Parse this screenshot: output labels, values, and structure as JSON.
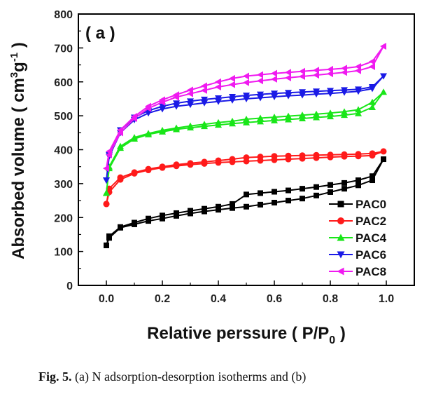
{
  "panel_label": "( a )",
  "caption": {
    "label": "Fig. 5.",
    "text": "(a) N adsorption-desorption isotherms and (b)"
  },
  "chart_data": {
    "type": "line",
    "xlabel": "Relative perssure ( P/P",
    "xlabel_sub": "0",
    "xlabel_end": " )",
    "ylabel": "Absorbed volume ( cm",
    "ylabel_sup1": "3",
    "ylabel_mid": "g",
    "ylabel_sup2": "-1",
    "ylabel_end": " )",
    "xlim": [
      -0.1,
      1.1
    ],
    "ylim": [
      0,
      800
    ],
    "xticks": [
      0.0,
      0.2,
      0.4,
      0.6,
      0.8,
      1.0
    ],
    "xtick_labels": [
      "0.0",
      "0.2",
      "0.4",
      "0.6",
      "0.8",
      "1.0"
    ],
    "yticks": [
      0,
      100,
      200,
      300,
      400,
      500,
      600,
      700,
      800
    ],
    "ytick_labels": [
      "0",
      "100",
      "200",
      "300",
      "400",
      "500",
      "600",
      "700",
      "800"
    ],
    "legend_position": "bottom-right",
    "series": [
      {
        "name": "PAC0",
        "color": "#000000",
        "marker": "square",
        "x": [
          0.0,
          0.01,
          0.05,
          0.1,
          0.15,
          0.2,
          0.25,
          0.3,
          0.35,
          0.4,
          0.45,
          0.5,
          0.55,
          0.6,
          0.65,
          0.7,
          0.75,
          0.8,
          0.85,
          0.9,
          0.95,
          0.99,
          0.95,
          0.9,
          0.85,
          0.8,
          0.75,
          0.7,
          0.65,
          0.6,
          0.55,
          0.5,
          0.45,
          0.4,
          0.35,
          0.3,
          0.25,
          0.2,
          0.15,
          0.1,
          0.05,
          0.01,
          0.0
        ],
        "y": [
          118,
          140,
          170,
          180,
          190,
          197,
          205,
          212,
          218,
          223,
          228,
          232,
          238,
          244,
          250,
          256,
          265,
          275,
          285,
          295,
          310,
          372,
          322,
          310,
          302,
          296,
          290,
          285,
          280,
          276,
          272,
          268,
          240,
          232,
          226,
          220,
          213,
          206,
          197,
          185,
          172,
          145,
          118
        ]
      },
      {
        "name": "PAC2",
        "color": "#ff1a1a",
        "marker": "circle",
        "x": [
          0.0,
          0.01,
          0.05,
          0.1,
          0.15,
          0.2,
          0.25,
          0.3,
          0.35,
          0.4,
          0.45,
          0.5,
          0.55,
          0.6,
          0.65,
          0.7,
          0.75,
          0.8,
          0.85,
          0.9,
          0.95,
          0.99,
          0.95,
          0.9,
          0.85,
          0.8,
          0.75,
          0.7,
          0.65,
          0.6,
          0.55,
          0.5,
          0.45,
          0.4,
          0.35,
          0.3,
          0.25,
          0.2,
          0.15,
          0.1,
          0.05,
          0.01,
          0.0
        ],
        "y": [
          240,
          275,
          312,
          330,
          340,
          347,
          352,
          356,
          359,
          362,
          364,
          366,
          368,
          370,
          372,
          374,
          376,
          378,
          380,
          381,
          383,
          395,
          389,
          387,
          386,
          385,
          384,
          383,
          382,
          381,
          379,
          377,
          372,
          368,
          364,
          360,
          356,
          350,
          343,
          333,
          318,
          285,
          240
        ]
      },
      {
        "name": "PAC4",
        "color": "#19e619",
        "marker": "triangle-up",
        "x": [
          0.0,
          0.01,
          0.05,
          0.1,
          0.15,
          0.2,
          0.25,
          0.3,
          0.35,
          0.4,
          0.45,
          0.5,
          0.55,
          0.6,
          0.65,
          0.7,
          0.75,
          0.8,
          0.85,
          0.9,
          0.95,
          0.99,
          0.95,
          0.9,
          0.85,
          0.8,
          0.75,
          0.7,
          0.65,
          0.6,
          0.55,
          0.5,
          0.45,
          0.4,
          0.35,
          0.3,
          0.25,
          0.2,
          0.15,
          0.1,
          0.05,
          0.01,
          0.0
        ],
        "y": [
          272,
          345,
          405,
          432,
          445,
          453,
          460,
          465,
          469,
          473,
          477,
          480,
          483,
          486,
          489,
          492,
          495,
          498,
          502,
          507,
          525,
          570,
          540,
          518,
          512,
          508,
          505,
          502,
          499,
          496,
          493,
          490,
          484,
          480,
          475,
          470,
          464,
          457,
          448,
          436,
          410,
          350,
          272
        ]
      },
      {
        "name": "PAC6",
        "color": "#1a1ae6",
        "marker": "triangle-down",
        "x": [
          0.0,
          0.01,
          0.05,
          0.1,
          0.15,
          0.2,
          0.25,
          0.3,
          0.35,
          0.4,
          0.45,
          0.5,
          0.55,
          0.6,
          0.65,
          0.7,
          0.75,
          0.8,
          0.85,
          0.9,
          0.95,
          0.99,
          0.95,
          0.9,
          0.85,
          0.8,
          0.75,
          0.7,
          0.65,
          0.6,
          0.55,
          0.5,
          0.45,
          0.4,
          0.35,
          0.3,
          0.25,
          0.2,
          0.15,
          0.1,
          0.05,
          0.01,
          0.0
        ],
        "y": [
          310,
          380,
          450,
          488,
          508,
          520,
          528,
          533,
          538,
          542,
          546,
          550,
          553,
          556,
          559,
          561,
          564,
          566,
          569,
          572,
          580,
          617,
          585,
          578,
          576,
          574,
          572,
          570,
          568,
          566,
          563,
          560,
          556,
          552,
          548,
          543,
          537,
          528,
          515,
          495,
          458,
          385,
          310
        ]
      },
      {
        "name": "PAC8",
        "color": "#f01af0",
        "marker": "triangle-left",
        "x": [
          0.0,
          0.01,
          0.05,
          0.1,
          0.15,
          0.2,
          0.25,
          0.3,
          0.35,
          0.4,
          0.45,
          0.5,
          0.55,
          0.6,
          0.65,
          0.7,
          0.75,
          0.8,
          0.85,
          0.9,
          0.95,
          0.99,
          0.95,
          0.9,
          0.85,
          0.8,
          0.75,
          0.7,
          0.65,
          0.6,
          0.55,
          0.5,
          0.45,
          0.4,
          0.35,
          0.3,
          0.25,
          0.2,
          0.15,
          0.1,
          0.05,
          0.01,
          0.0
        ],
        "y": [
          345,
          385,
          450,
          492,
          522,
          540,
          555,
          565,
          575,
          585,
          592,
          598,
          603,
          608,
          612,
          616,
          620,
          624,
          628,
          633,
          645,
          705,
          660,
          645,
          640,
          637,
          634,
          631,
          628,
          625,
          621,
          617,
          610,
          600,
          588,
          576,
          562,
          547,
          528,
          498,
          458,
          395,
          345
        ]
      }
    ]
  }
}
